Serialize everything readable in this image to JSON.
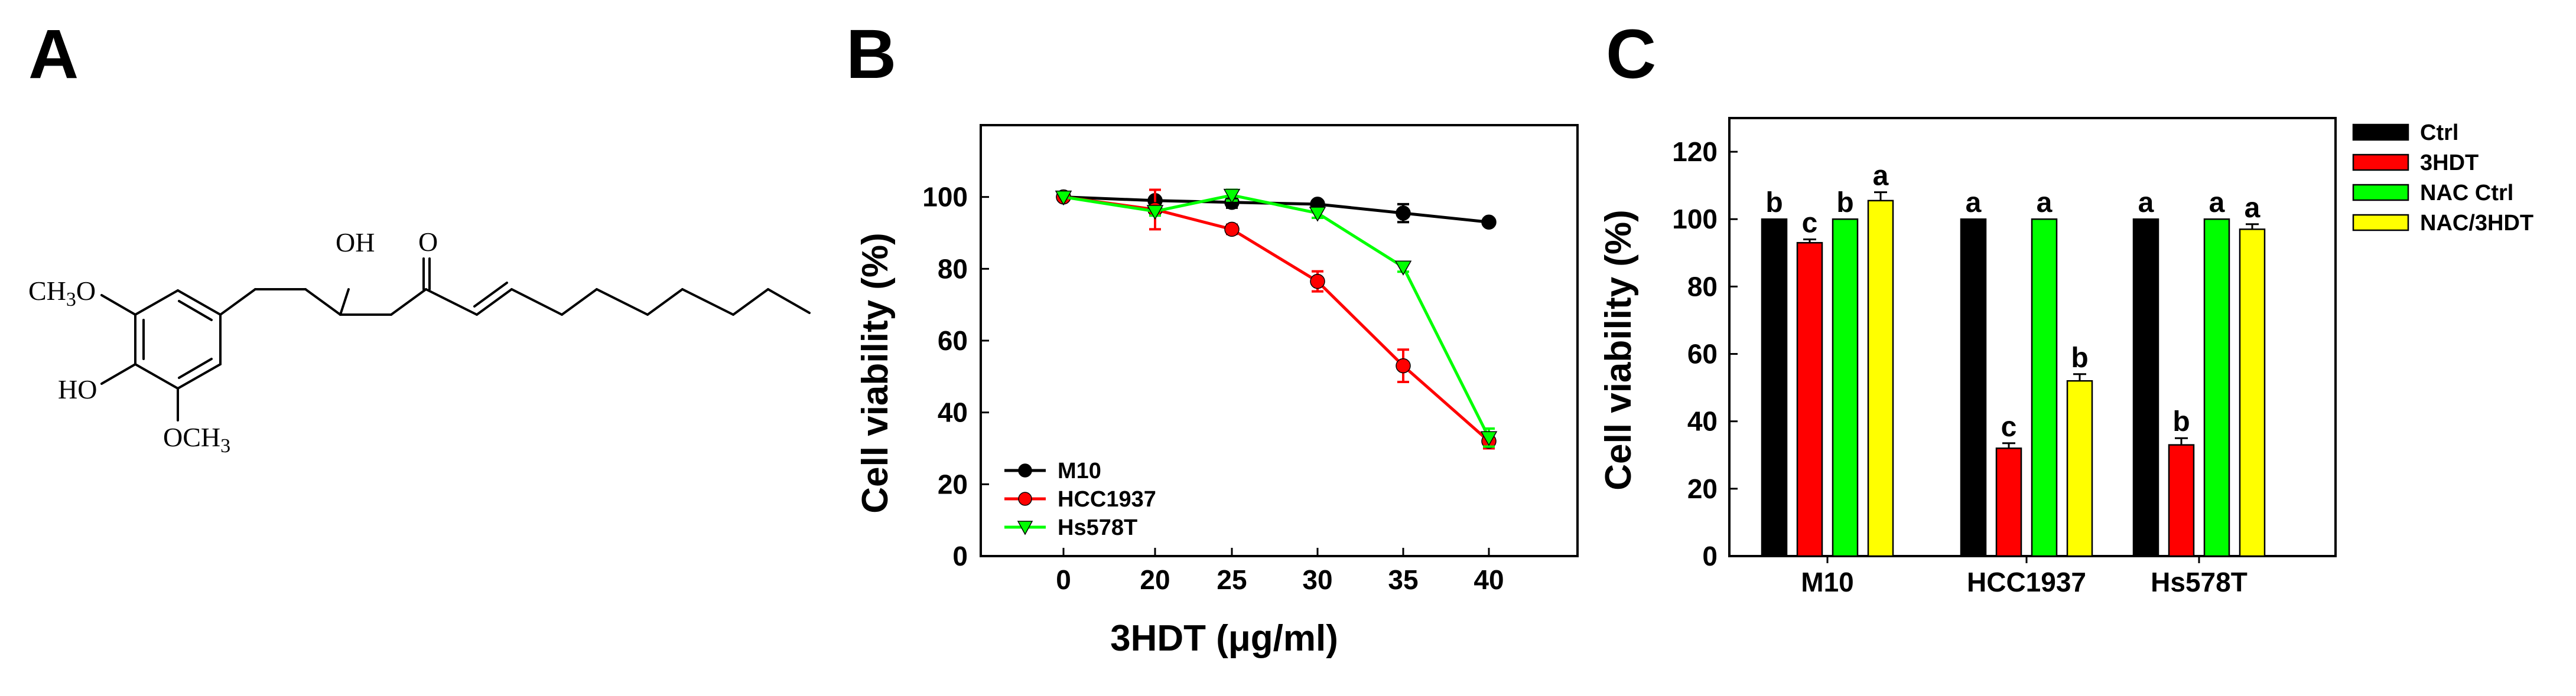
{
  "figure": {
    "panel_a": {
      "letter": "A",
      "chem": {
        "ch3o_main": "CH",
        "ch3o_sub": "3",
        "ch3o_tail": "O",
        "oh_chain": "OH",
        "ketone_o": "O",
        "ho_ring": "HO",
        "och3_main": "OCH",
        "och3_sub": "3"
      }
    },
    "panel_b": {
      "letter": "B"
    },
    "panel_c": {
      "letter": "C"
    }
  },
  "chart_data": [
    {
      "panel": "B",
      "type": "line",
      "title": "",
      "xlabel": "3HDT (μg/ml)",
      "ylabel": "Cell viability (%)",
      "categories": [
        "0",
        "20",
        "25",
        "30",
        "35",
        "40"
      ],
      "ylim": [
        0,
        120
      ],
      "yticks": [
        0,
        20,
        40,
        60,
        80,
        100
      ],
      "grid": false,
      "legend_position": "bottom-left",
      "series": [
        {
          "name": "M10",
          "color": "#000000",
          "marker": "circle",
          "values": [
            100,
            99,
            98.5,
            98,
            95.5,
            93
          ],
          "errors": [
            0,
            0.5,
            1.5,
            0.8,
            2.5,
            0.8
          ]
        },
        {
          "name": "HCC1937",
          "color": "#ff0000",
          "marker": "circle",
          "values": [
            100,
            96.5,
            91,
            76.5,
            53,
            32
          ],
          "errors": [
            0,
            5.5,
            1.3,
            2.8,
            4.5,
            2.0
          ]
        },
        {
          "name": "Hs578T",
          "color": "#00ff00",
          "marker": "triangle-down",
          "values": [
            100,
            96,
            100.5,
            95.5,
            80.5,
            33
          ],
          "errors": [
            0,
            1.2,
            1.5,
            1.3,
            1.3,
            2.5
          ]
        }
      ]
    },
    {
      "panel": "C",
      "type": "bar",
      "title": "",
      "xlabel": "",
      "ylabel": "Cell viability (%)",
      "categories": [
        "M10",
        "HCC1937",
        "Hs578T"
      ],
      "ylim": [
        0,
        130
      ],
      "yticks": [
        0,
        20,
        40,
        60,
        80,
        100,
        120
      ],
      "grid": false,
      "legend_position": "outside-right",
      "series": [
        {
          "name": "Ctrl",
          "color": "#000000",
          "values": [
            100,
            100,
            100
          ],
          "errors": [
            0,
            0,
            0
          ],
          "labels": [
            "b",
            "a",
            "a"
          ]
        },
        {
          "name": "3HDT",
          "color": "#ff0000",
          "values": [
            93,
            32,
            33
          ],
          "errors": [
            1,
            1.5,
            2
          ],
          "labels": [
            "c",
            "c",
            "b"
          ]
        },
        {
          "name": "NAC Ctrl",
          "color": "#00ff00",
          "values": [
            100,
            100,
            100
          ],
          "errors": [
            0,
            0,
            0
          ],
          "labels": [
            "b",
            "a",
            "a"
          ]
        },
        {
          "name": "NAC/3HDT",
          "color": "#ffff00",
          "values": [
            105.5,
            52,
            97
          ],
          "errors": [
            2.5,
            2,
            1.5
          ],
          "labels": [
            "a",
            "b",
            "a"
          ]
        }
      ]
    }
  ]
}
